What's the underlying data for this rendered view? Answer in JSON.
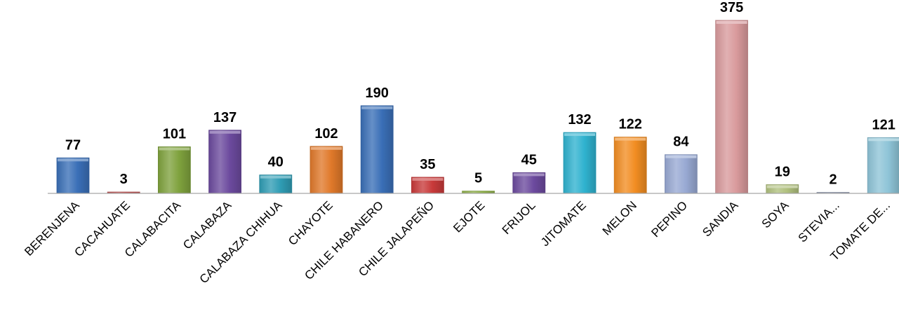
{
  "chart_data": {
    "type": "bar",
    "title": "",
    "xlabel": "",
    "ylabel": "",
    "ylim": [
      0,
      375
    ],
    "grid": false,
    "legend": "none",
    "categories": [
      "BERENJENA",
      "CACAHUATE",
      "CALABACITA",
      "CALABAZA",
      "CALABAZA CHIHUA",
      "CHAYOTE",
      "CHILE HABANERO",
      "CHILE JALAPEÑO",
      "EJOTE",
      "FRIJOL",
      "JITOMATE",
      "MELON",
      "PEPINO",
      "SANDIA",
      "SOYA",
      "STEVIA...",
      "TOMATE DE..."
    ],
    "values": [
      77,
      3,
      101,
      137,
      40,
      102,
      190,
      35,
      5,
      45,
      132,
      122,
      84,
      375,
      19,
      2,
      121
    ],
    "colors": [
      "#3a6fb7",
      "#c05656",
      "#7fa23d",
      "#6c4a9e",
      "#2f9cb4",
      "#e0792a",
      "#3a6fb7",
      "#c83a3a",
      "#8fb04a",
      "#6c4a9e",
      "#2fb2cf",
      "#f28d22",
      "#98a9d3",
      "#d99a9c",
      "#b0c07e",
      "#9aa2b8",
      "#8ec4d7"
    ]
  }
}
